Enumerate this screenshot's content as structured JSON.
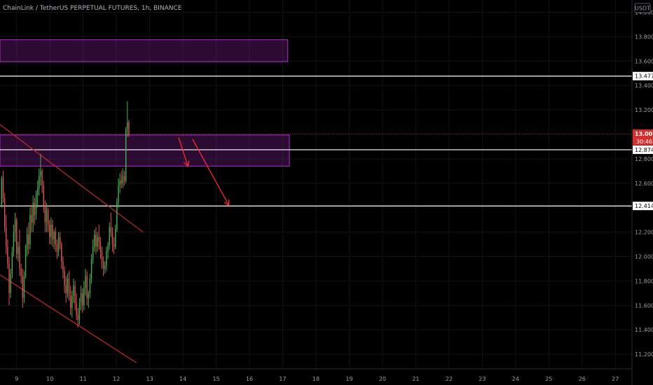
{
  "header": {
    "title": "ChainLink / TetherUS PERPETUAL FUTURES, 1h, BINANCE"
  },
  "axis": {
    "currency": "USDT",
    "countdown": "30:46"
  },
  "colors": {
    "up": "#4caf50",
    "down": "#e05555",
    "zone": "#9c27b0",
    "line": "#ffffff",
    "arrow": "#ff2a2a",
    "price": "#d32f2f"
  },
  "chart_data": {
    "type": "candlestick",
    "title": "ChainLink / TetherUS PERPETUAL FUTURES, 1h, BINANCE",
    "y_ticks": [
      11.2,
      11.4,
      11.6,
      11.8,
      12.0,
      12.2,
      12.4,
      12.6,
      12.8,
      13.0,
      13.2,
      13.4,
      13.6,
      13.8,
      14.0
    ],
    "y_tick_labels": [
      "11.200",
      "11.400",
      "11.600",
      "11.800",
      "12.000",
      "12.200",
      "12.400",
      "12.600",
      "12.800",
      "13.000",
      "13.200",
      "13.400",
      "13.600",
      "13.800",
      "14.000"
    ],
    "x_ticks": [
      9,
      10,
      11,
      12,
      13,
      14,
      15,
      16,
      17,
      18,
      19,
      20,
      21,
      22,
      23,
      24,
      25,
      26,
      27
    ],
    "x_tick_labels": [
      "9",
      "10",
      "11",
      "12",
      "13",
      "14",
      "15",
      "16",
      "17",
      "18",
      "19",
      "20",
      "21",
      "22",
      "23",
      "24",
      "25",
      "26",
      "27"
    ],
    "ylim": [
      11.08,
      14.1
    ],
    "xlim": [
      8.5,
      27.5
    ],
    "price_labels": [
      {
        "value": 13.477,
        "label": "13.477"
      },
      {
        "value": 12.874,
        "label": "12.874"
      },
      {
        "value": 12.414,
        "label": "12.414"
      }
    ],
    "current_price": {
      "value": 13.001,
      "label": "13.001"
    },
    "horizontal_lines": [
      13.477,
      12.874,
      12.414
    ],
    "zones": [
      {
        "x_start": 8.5,
        "x_end": 17.15,
        "y_low": 13.595,
        "y_high": 13.775
      },
      {
        "x_start": 8.5,
        "x_end": 17.2,
        "y_low": 12.74,
        "y_high": 12.995
      }
    ],
    "trendlines": [
      {
        "x1": 8.5,
        "y1": 13.08,
        "x2": 12.8,
        "y2": 12.2
      },
      {
        "x1": 8.5,
        "y1": 11.85,
        "x2": 12.6,
        "y2": 11.13
      }
    ],
    "arrows": [
      {
        "x1": 13.87,
        "y1": 12.975,
        "x2": 14.15,
        "y2": 12.74
      },
      {
        "x1": 14.29,
        "y1": 12.96,
        "x2": 15.38,
        "y2": 12.42
      }
    ],
    "candles": {
      "x_start": 8.55,
      "x_step": 0.045,
      "ohlc": [
        [
          12.42,
          12.66,
          12.4,
          12.64
        ],
        [
          12.64,
          12.7,
          12.44,
          12.48
        ],
        [
          12.48,
          12.52,
          12.2,
          12.24
        ],
        [
          12.24,
          12.34,
          12.02,
          12.08
        ],
        [
          12.08,
          12.14,
          11.9,
          11.94
        ],
        [
          11.94,
          12.0,
          11.6,
          11.7
        ],
        [
          11.7,
          11.9,
          11.66,
          11.86
        ],
        [
          11.86,
          12.08,
          11.82,
          12.04
        ],
        [
          12.04,
          12.26,
          12.0,
          12.2
        ],
        [
          12.2,
          12.36,
          12.12,
          12.3
        ],
        [
          12.3,
          12.32,
          11.98,
          12.02
        ],
        [
          12.02,
          12.12,
          11.96,
          12.08
        ],
        [
          12.08,
          12.22,
          11.84,
          11.9
        ],
        [
          11.9,
          11.94,
          11.78,
          11.84
        ],
        [
          11.84,
          11.9,
          11.58,
          11.66
        ],
        [
          11.66,
          11.88,
          11.62,
          11.84
        ],
        [
          11.84,
          12.1,
          11.82,
          12.06
        ],
        [
          12.06,
          12.24,
          12.0,
          12.18
        ],
        [
          12.18,
          12.28,
          12.02,
          12.1
        ],
        [
          12.1,
          12.4,
          12.06,
          12.34
        ],
        [
          12.34,
          12.42,
          12.2,
          12.28
        ],
        [
          12.28,
          12.5,
          12.2,
          12.44
        ],
        [
          12.44,
          12.48,
          12.26,
          12.34
        ],
        [
          12.34,
          12.54,
          12.3,
          12.5
        ],
        [
          12.5,
          12.62,
          12.4,
          12.56
        ],
        [
          12.56,
          12.72,
          12.5,
          12.66
        ],
        [
          12.66,
          12.84,
          12.58,
          12.7
        ],
        [
          12.7,
          12.72,
          12.52,
          12.58
        ],
        [
          12.58,
          12.62,
          12.36,
          12.42
        ],
        [
          12.42,
          12.46,
          12.2,
          12.28
        ],
        [
          12.28,
          12.44,
          12.2,
          12.38
        ],
        [
          12.38,
          12.4,
          12.2,
          12.26
        ],
        [
          12.26,
          12.3,
          12.1,
          12.16
        ],
        [
          12.16,
          12.32,
          12.1,
          12.26
        ],
        [
          12.26,
          12.3,
          12.08,
          12.14
        ],
        [
          12.14,
          12.22,
          12.06,
          12.2
        ],
        [
          12.2,
          12.24,
          12.04,
          12.1
        ],
        [
          12.1,
          12.14,
          11.98,
          12.04
        ],
        [
          12.04,
          12.2,
          12.0,
          12.16
        ],
        [
          12.16,
          12.2,
          12.06,
          12.1
        ],
        [
          12.1,
          12.12,
          11.9,
          11.96
        ],
        [
          11.96,
          12.0,
          11.82,
          11.88
        ],
        [
          11.88,
          11.92,
          11.7,
          11.76
        ],
        [
          11.76,
          11.84,
          11.62,
          11.7
        ],
        [
          11.7,
          11.86,
          11.66,
          11.82
        ],
        [
          11.82,
          11.88,
          11.64,
          11.68
        ],
        [
          11.68,
          11.76,
          11.52,
          11.58
        ],
        [
          11.58,
          11.72,
          11.5,
          11.68
        ],
        [
          11.68,
          11.82,
          11.62,
          11.76
        ],
        [
          11.76,
          11.8,
          11.56,
          11.62
        ],
        [
          11.62,
          11.7,
          11.48,
          11.52
        ],
        [
          11.52,
          11.58,
          11.42,
          11.48
        ],
        [
          11.48,
          11.66,
          11.44,
          11.62
        ],
        [
          11.62,
          11.76,
          11.56,
          11.7
        ],
        [
          11.7,
          11.74,
          11.54,
          11.6
        ],
        [
          11.6,
          11.8,
          11.56,
          11.74
        ],
        [
          11.74,
          11.9,
          11.68,
          11.84
        ],
        [
          11.84,
          11.88,
          11.6,
          11.66
        ],
        [
          11.66,
          11.72,
          11.58,
          11.7
        ],
        [
          11.7,
          11.86,
          11.66,
          11.82
        ],
        [
          11.82,
          12.02,
          11.78,
          11.98
        ],
        [
          11.98,
          12.14,
          11.94,
          12.08
        ],
        [
          12.08,
          12.22,
          12.04,
          12.18
        ],
        [
          12.18,
          12.24,
          12.02,
          12.08
        ],
        [
          12.08,
          12.2,
          12.04,
          12.16
        ],
        [
          12.16,
          12.26,
          12.06,
          12.12
        ],
        [
          12.12,
          12.16,
          11.98,
          12.04
        ],
        [
          12.04,
          12.08,
          11.9,
          11.96
        ],
        [
          11.96,
          12.0,
          11.84,
          11.9
        ],
        [
          11.9,
          11.96,
          11.86,
          11.92
        ],
        [
          11.92,
          12.08,
          11.88,
          12.04
        ],
        [
          12.04,
          12.12,
          11.98,
          12.1
        ],
        [
          12.1,
          12.28,
          12.06,
          12.24
        ],
        [
          12.24,
          12.36,
          12.16,
          12.2
        ],
        [
          12.2,
          12.24,
          12.04,
          12.1
        ],
        [
          12.1,
          12.16,
          12.02,
          12.08
        ],
        [
          12.08,
          12.26,
          12.06,
          12.22
        ],
        [
          12.22,
          12.48,
          12.2,
          12.44
        ],
        [
          12.44,
          12.64,
          12.4,
          12.58
        ],
        [
          12.58,
          12.68,
          12.52,
          12.62
        ],
        [
          12.62,
          12.7,
          12.56,
          12.6
        ],
        [
          12.6,
          12.72,
          12.56,
          12.66
        ],
        [
          12.66,
          12.7,
          12.58,
          12.62
        ],
        [
          12.62,
          13.06,
          12.6,
          13.04
        ],
        [
          13.04,
          13.27,
          12.98,
          13.1
        ],
        [
          13.1,
          13.12,
          12.98,
          13.001
        ]
      ]
    }
  }
}
